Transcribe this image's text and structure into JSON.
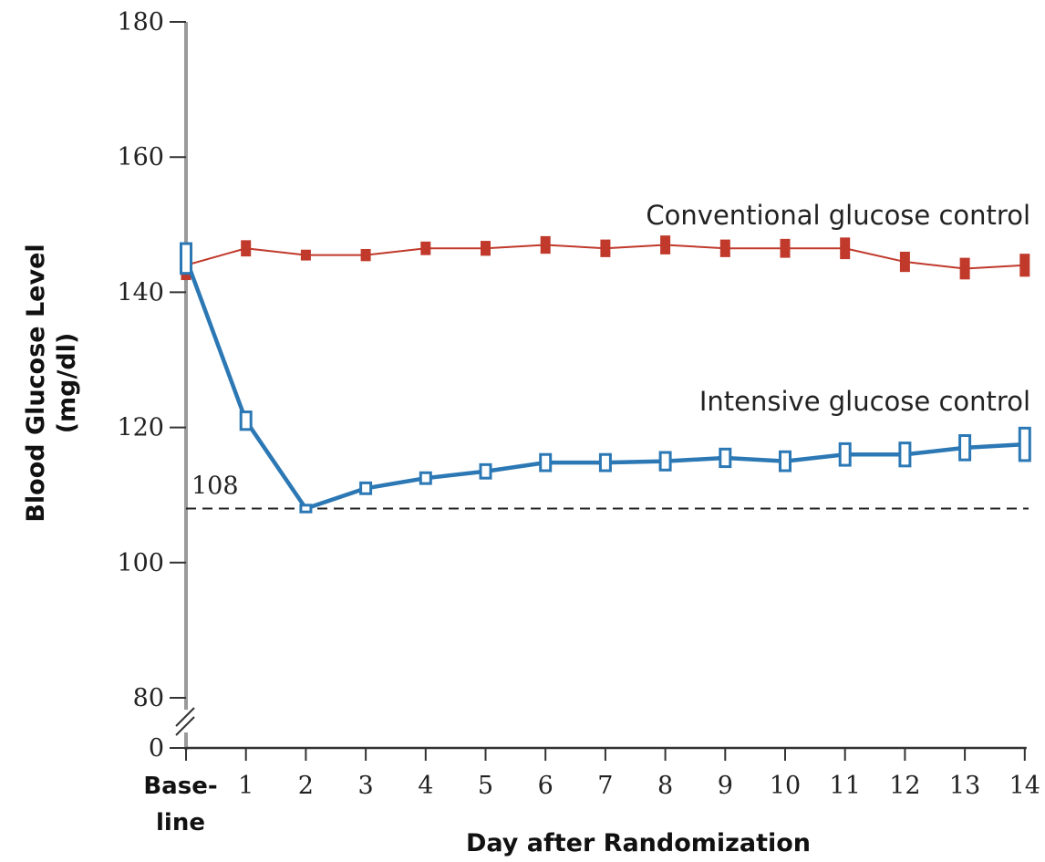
{
  "chart_data": {
    "type": "line",
    "xlabel": "Day after Randomization",
    "ylabel_line1": "Blood Glucose Level",
    "ylabel_line2": "(mg/dl)",
    "x_ticks": [
      "1",
      "2",
      "3",
      "4",
      "5",
      "6",
      "7",
      "8",
      "9",
      "10",
      "11",
      "12",
      "13",
      "14"
    ],
    "x_baseline_label": [
      "Base-",
      "line"
    ],
    "y_ticks": [
      180,
      160,
      140,
      120,
      100,
      80,
      0
    ],
    "ylim": [
      80,
      180
    ],
    "y_axis_break": true,
    "grid": false,
    "reference_line": {
      "value": 108,
      "label": "108",
      "style": "dashed"
    },
    "series": [
      {
        "name": "Conventional glucose control",
        "color": "#c0392b",
        "marker": "filled-bar",
        "x": [
          0,
          1,
          2,
          3,
          4,
          5,
          6,
          7,
          8,
          9,
          10,
          11,
          12,
          13,
          14
        ],
        "values": [
          144,
          146.5,
          145.5,
          145.5,
          146.5,
          146.5,
          147,
          146.5,
          147,
          146.5,
          146.5,
          146.5,
          144.5,
          143.5,
          144
        ],
        "error_halfwidth": [
          2.2,
          1.2,
          0.8,
          0.9,
          1.0,
          1.1,
          1.3,
          1.3,
          1.4,
          1.3,
          1.4,
          1.6,
          1.5,
          1.6,
          1.7
        ]
      },
      {
        "name": "Intensive glucose control",
        "color": "#2b78b5",
        "marker": "hollow-bar",
        "x": [
          0,
          1,
          2,
          3,
          4,
          5,
          6,
          7,
          8,
          9,
          10,
          11,
          12,
          13,
          14
        ],
        "values": [
          145,
          121,
          108,
          111,
          112.5,
          113.5,
          114.8,
          114.8,
          115,
          115.5,
          115,
          116,
          116,
          117,
          117.5
        ],
        "error_halfwidth": [
          2.2,
          1.3,
          0.5,
          0.8,
          0.8,
          1.0,
          1.2,
          1.2,
          1.3,
          1.3,
          1.4,
          1.6,
          1.7,
          1.8,
          2.4
        ]
      }
    ]
  }
}
